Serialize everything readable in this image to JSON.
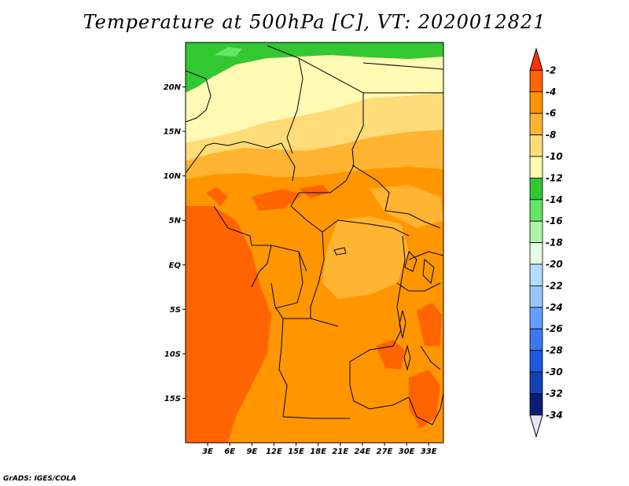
{
  "title": "Temperature at 500hPa [C], VT: 2020012821",
  "credit": "GrADS: IGES/COLA",
  "map": {
    "lon_range": [
      0,
      35
    ],
    "lat_range": [
      -20,
      25
    ],
    "lat_ticks": [
      {
        "value": 20,
        "label": "20N"
      },
      {
        "value": 15,
        "label": "15N"
      },
      {
        "value": 10,
        "label": "10N"
      },
      {
        "value": 5,
        "label": "5N"
      },
      {
        "value": 0,
        "label": "EQ"
      },
      {
        "value": -5,
        "label": "5S"
      },
      {
        "value": -10,
        "label": "10S"
      },
      {
        "value": -15,
        "label": "15S"
      }
    ],
    "lon_ticks": [
      {
        "value": 3,
        "label": "3E"
      },
      {
        "value": 6,
        "label": "6E"
      },
      {
        "value": 9,
        "label": "9E"
      },
      {
        "value": 12,
        "label": "12E"
      },
      {
        "value": 15,
        "label": "15E"
      },
      {
        "value": 18,
        "label": "18E"
      },
      {
        "value": 21,
        "label": "21E"
      },
      {
        "value": 24,
        "label": "24E"
      },
      {
        "value": 27,
        "label": "27E"
      },
      {
        "value": 30,
        "label": "30E"
      },
      {
        "value": 33,
        "label": "33E"
      }
    ]
  },
  "colorbar": {
    "levels": [
      "-2",
      "-4",
      "-6",
      "-8",
      "-10",
      "-12",
      "-14",
      "-16",
      "-18",
      "-20",
      "-22",
      "-24",
      "-26",
      "-28",
      "-30",
      "-32",
      "-34"
    ],
    "colors": [
      "#ff3200",
      "#ff6400",
      "#ff9600",
      "#ffb432",
      "#ffdc78",
      "#fffab4",
      "#32c832",
      "#64e664",
      "#aaf5aa",
      "#e6ffe6",
      "#b4dcff",
      "#96c8ff",
      "#64a0ff",
      "#3c78f0",
      "#1e5adc",
      "#1441b4",
      "#0a1e78",
      "#e6e6ff"
    ]
  }
}
